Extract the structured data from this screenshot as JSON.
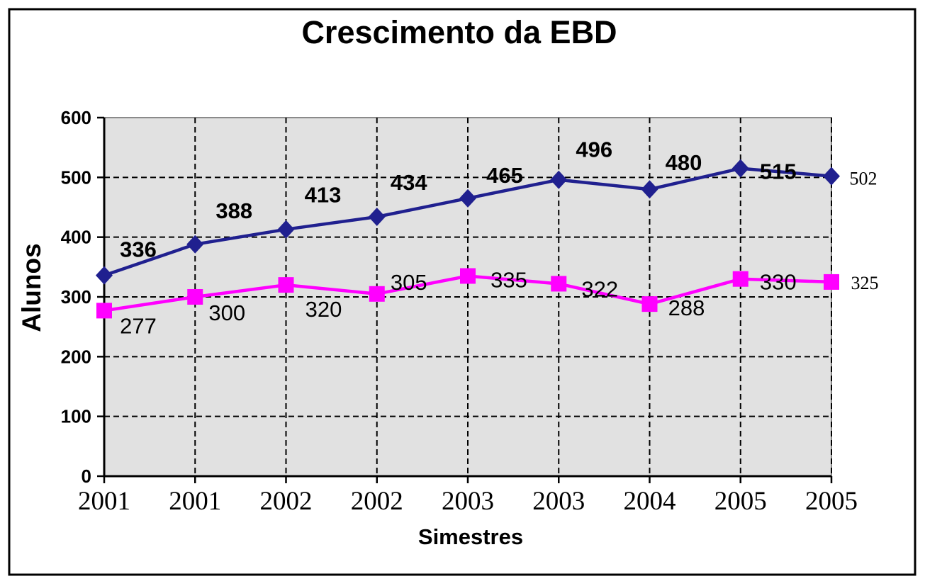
{
  "chart_data": {
    "type": "line",
    "title": "Crescimento da EBD",
    "xlabel": "Simestres",
    "ylabel": "Alunos",
    "categories": [
      "2001",
      "2001",
      "2002",
      "2002",
      "2003",
      "2003",
      "2004",
      "2005",
      "2005"
    ],
    "series": [
      {
        "name": "blue-diamond-series",
        "color": "#20208F",
        "marker": "diamond",
        "values": [
          336,
          388,
          413,
          434,
          465,
          496,
          480,
          515,
          502
        ]
      },
      {
        "name": "pink-square-series",
        "color": "#FF00FF",
        "marker": "square",
        "values": [
          277,
          300,
          320,
          305,
          335,
          322,
          288,
          330,
          325
        ]
      }
    ],
    "y_ticks": [
      0,
      100,
      200,
      300,
      400,
      500,
      600
    ],
    "ylim": [
      0,
      600
    ],
    "grid": {
      "horizontal": "dashed",
      "vertical": "dashed"
    },
    "legend": "none",
    "data_labels": true,
    "plot_background": "#E1E1E1",
    "gridline_color": "#000000",
    "frame_color": "#000000"
  }
}
